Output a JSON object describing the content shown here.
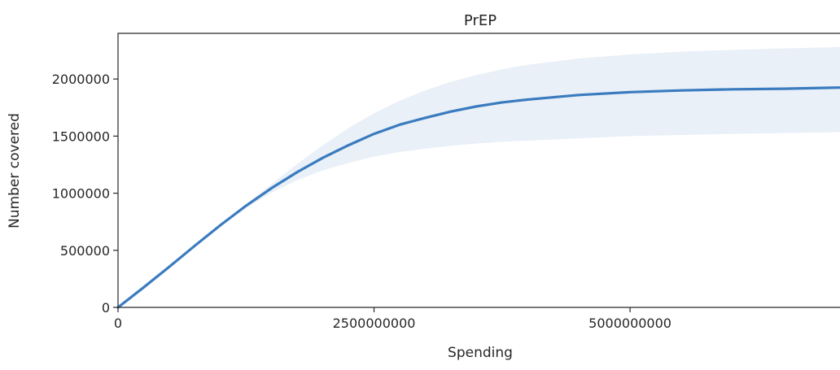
{
  "chart_data": {
    "type": "line",
    "title": "PrEP",
    "xlabel": "Spending",
    "ylabel": "Number covered",
    "xlim": [
      0,
      7050000000
    ],
    "ylim": [
      0,
      2400000
    ],
    "x_ticks": [
      0,
      2500000000,
      5000000000
    ],
    "x_tick_labels": [
      "0",
      "2500000000",
      "5000000000"
    ],
    "y_ticks": [
      0,
      500000,
      1000000,
      1500000,
      2000000
    ],
    "y_tick_labels": [
      "0",
      "500000",
      "1000000",
      "1500000",
      "2000000"
    ],
    "grid": false,
    "line_color": "#3a7bbf",
    "band_color": "#e9f0f8",
    "series": [
      {
        "x": [
          0,
          250000000,
          500000000,
          750000000,
          1000000000,
          1250000000,
          1500000000,
          1750000000,
          2000000000,
          2250000000,
          2500000000,
          2750000000,
          3000000000,
          3250000000,
          3500000000,
          3750000000,
          4000000000,
          4500000000,
          5000000000,
          5500000000,
          6000000000,
          6500000000,
          7050000000
        ],
        "y": [
          0,
          175000,
          355000,
          540000,
          720000,
          890000,
          1045000,
          1185000,
          1310000,
          1420000,
          1520000,
          1600000,
          1660000,
          1715000,
          1760000,
          1795000,
          1820000,
          1860000,
          1885000,
          1900000,
          1910000,
          1915000,
          1925000
        ],
        "lower": [
          0,
          175000,
          355000,
          538000,
          712000,
          870000,
          1005000,
          1115000,
          1200000,
          1265000,
          1320000,
          1360000,
          1390000,
          1415000,
          1435000,
          1450000,
          1460000,
          1480000,
          1500000,
          1510000,
          1520000,
          1527000,
          1535000
        ],
        "upper": [
          0,
          175000,
          355000,
          542000,
          728000,
          905000,
          1080000,
          1255000,
          1420000,
          1570000,
          1700000,
          1810000,
          1900000,
          1975000,
          2035000,
          2085000,
          2125000,
          2180000,
          2215000,
          2240000,
          2255000,
          2268000,
          2280000
        ]
      }
    ]
  }
}
